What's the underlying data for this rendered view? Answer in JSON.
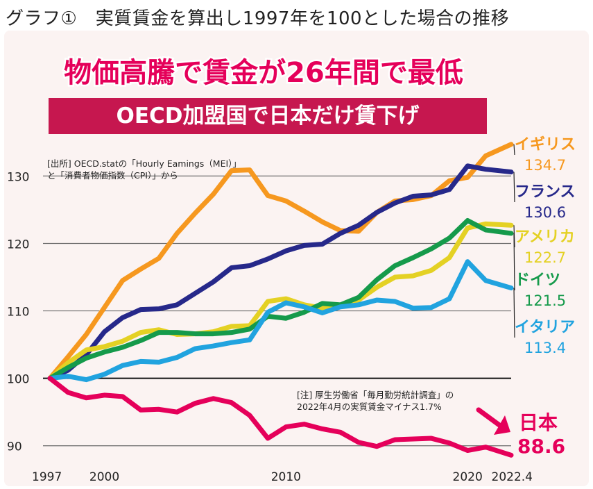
{
  "header": {
    "figure_label": "グラフ①　実質賃金を算出し1997年を100とした場合の推移"
  },
  "chart_data": {
    "type": "line",
    "title": "物価高騰で賃金が26年間で最低",
    "subtitle": "OECD加盟国で日本だけ賃下げ",
    "source_note": [
      "[出所] OECD.statの「Hourly Eamings（MEI）」",
      "と「消費者物価指数（CPI）」から"
    ],
    "footnote": [
      "[注] 厚生労働省「毎月勤労統計調査」の",
      "2022年4月の実質賃金マイナス1.7%"
    ],
    "xlabel": "",
    "ylabel": "",
    "x_tick_labels": [
      "1997",
      "2000",
      "2010",
      "2020",
      "2022.4"
    ],
    "x_tick_values": [
      1997,
      2000,
      2010,
      2020,
      2022.4
    ],
    "xlim": [
      1997,
      2022.4
    ],
    "y_ticks": [
      90,
      100,
      110,
      120,
      130
    ],
    "ylim": [
      87.5,
      135.5
    ],
    "grid": "horizontal",
    "legend": "right-end labels",
    "series": [
      {
        "name": "イギリス",
        "end_label": "134.7",
        "color": "#f6981f",
        "x": [
          1997,
          1998,
          1999,
          2000,
          2001,
          2002,
          2003,
          2004,
          2005,
          2006,
          2007,
          2008,
          2009,
          2010,
          2011,
          2012,
          2013,
          2014,
          2015,
          2016,
          2017,
          2018,
          2019,
          2020,
          2021,
          2022.4
        ],
        "values": [
          100,
          103.2,
          106.5,
          110.5,
          114.5,
          116.2,
          117.8,
          121.5,
          124.5,
          127.3,
          130.8,
          130.9,
          127.1,
          126.3,
          124.8,
          123.2,
          121.9,
          121.8,
          124.6,
          126.3,
          126.5,
          127.1,
          129.3,
          129.8,
          133.0,
          134.7
        ]
      },
      {
        "name": "フランス",
        "end_label": "130.6",
        "color": "#26288a",
        "x": [
          1997,
          1998,
          1999,
          2000,
          2001,
          2002,
          2003,
          2004,
          2005,
          2006,
          2007,
          2008,
          2009,
          2010,
          2011,
          2012,
          2013,
          2014,
          2015,
          2016,
          2017,
          2018,
          2019,
          2020,
          2021,
          2022.4
        ],
        "values": [
          100,
          101.2,
          103.5,
          106.9,
          109.0,
          110.2,
          110.3,
          110.9,
          112.6,
          114.3,
          116.4,
          116.7,
          117.7,
          118.9,
          119.7,
          119.9,
          121.5,
          122.7,
          124.6,
          126.0,
          127.0,
          127.2,
          128.0,
          131.5,
          131.0,
          130.6
        ]
      },
      {
        "name": "アメリカ",
        "end_label": "122.7",
        "color": "#e4d124",
        "x": [
          1997,
          1998,
          1999,
          2000,
          2001,
          2002,
          2003,
          2004,
          2005,
          2006,
          2007,
          2008,
          2009,
          2010,
          2011,
          2012,
          2013,
          2014,
          2015,
          2016,
          2017,
          2018,
          2019,
          2020,
          2021,
          2022.4
        ],
        "values": [
          100,
          102.3,
          104.2,
          104.7,
          105.5,
          106.8,
          107.2,
          106.5,
          106.6,
          106.9,
          107.7,
          107.8,
          111.4,
          111.8,
          110.9,
          110.4,
          110.8,
          111.6,
          113.5,
          115.0,
          115.2,
          116.0,
          117.9,
          122.3,
          122.9,
          122.7
        ]
      },
      {
        "name": "ドイツ",
        "end_label": "121.5",
        "color": "#159a4b",
        "x": [
          1997,
          1998,
          1999,
          2000,
          2001,
          2002,
          2003,
          2004,
          2005,
          2006,
          2007,
          2008,
          2009,
          2010,
          2011,
          2012,
          2013,
          2014,
          2015,
          2016,
          2017,
          2018,
          2019,
          2020,
          2021,
          2022.4
        ],
        "values": [
          100,
          101.6,
          103.0,
          103.9,
          104.6,
          105.6,
          106.8,
          106.8,
          106.6,
          106.6,
          106.8,
          107.3,
          109.2,
          108.9,
          109.8,
          111.1,
          110.9,
          112.0,
          114.6,
          116.7,
          117.9,
          119.2,
          120.8,
          123.4,
          122.0,
          121.5
        ]
      },
      {
        "name": "イタリア",
        "end_label": "113.4",
        "color": "#21a3df",
        "x": [
          1997,
          1998,
          1999,
          2000,
          2001,
          2002,
          2003,
          2004,
          2005,
          2006,
          2007,
          2008,
          2009,
          2010,
          2011,
          2012,
          2013,
          2014,
          2015,
          2016,
          2017,
          2018,
          2019,
          2020,
          2021,
          2022.4
        ],
        "values": [
          100,
          100.3,
          99.8,
          100.6,
          101.9,
          102.5,
          102.4,
          103.1,
          104.4,
          104.8,
          105.3,
          105.7,
          109.8,
          111.2,
          110.6,
          109.7,
          110.6,
          110.9,
          111.6,
          111.4,
          110.4,
          110.5,
          111.8,
          117.3,
          114.5,
          113.4
        ]
      },
      {
        "name": "日本",
        "end_label": "88.6",
        "color": "#e5005a",
        "x": [
          1997,
          1998,
          1999,
          2000,
          2001,
          2002,
          2003,
          2004,
          2005,
          2006,
          2007,
          2008,
          2009,
          2010,
          2011,
          2012,
          2013,
          2014,
          2015,
          2016,
          2017,
          2018,
          2019,
          2020,
          2021,
          2022.4
        ],
        "values": [
          100,
          97.9,
          97.1,
          97.5,
          97.3,
          95.3,
          95.4,
          95.0,
          96.3,
          97.0,
          96.4,
          94.5,
          91.1,
          92.8,
          93.2,
          92.5,
          92.0,
          90.5,
          89.9,
          90.9,
          91.0,
          91.1,
          90.4,
          89.3,
          89.8,
          88.6
        ]
      }
    ]
  }
}
